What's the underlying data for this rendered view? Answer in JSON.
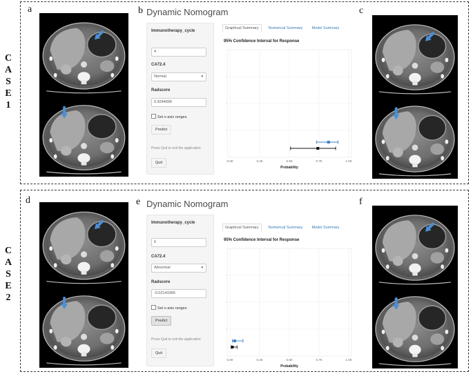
{
  "panel_letters": {
    "a": "a",
    "b": "b",
    "c": "c",
    "d": "d",
    "e": "e",
    "f": "f"
  },
  "case_labels": [
    {
      "letters": [
        "C",
        "A",
        "S",
        "E",
        "1"
      ]
    },
    {
      "letters": [
        "C",
        "A",
        "S",
        "E",
        "2"
      ]
    }
  ],
  "apps": [
    {
      "title": "Dynamic Nomogram",
      "sidebar": {
        "immunotherapy_label": "Immunotherapy_cycle",
        "immunotherapy_value": "4",
        "ca_label": "CA72.4",
        "ca_value": "Normal",
        "radscore_label": "Radscore",
        "radscore_value": "0.9244596",
        "checkbox_label": "Set x-axis ranges",
        "predict_label": "Predict",
        "hint": "Press Quit to exit the application",
        "quit_label": "Quit"
      },
      "tabs": [
        "Graphical Summary",
        "Numerical Summary",
        "Model Summary"
      ],
      "active_tab": 0,
      "chart_title": "95% Confidence Interval for Response",
      "chart_data": {
        "type": "scatter",
        "title": "95% Confidence Interval for Response",
        "xlabel": "Probability",
        "ylabel": "",
        "xlim": [
          0,
          1
        ],
        "x_ticks": [
          "0.00",
          "0.25",
          "0.50",
          "0.75",
          "1.00"
        ],
        "grid": true,
        "series": [
          {
            "point": 0.83,
            "lower": 0.73,
            "upper": 0.91,
            "color": "#3b7fc4"
          },
          {
            "point": 0.74,
            "lower": 0.51,
            "upper": 0.89,
            "color": "#111111"
          }
        ]
      }
    },
    {
      "title": "Dynamic Nomogram",
      "sidebar": {
        "immunotherapy_label": "Immunotherapy_cycle",
        "immunotherapy_value": "6",
        "ca_label": "CA72.4",
        "ca_value": "Abnormal",
        "radscore_label": "Radscore",
        "radscore_value": "-0.02143366",
        "checkbox_label": "Set x-axis ranges",
        "predict_label": "Predict",
        "hint": "Press Quit to exit the application",
        "quit_label": "Quit"
      },
      "tabs": [
        "Graphical Summary",
        "Numerical Summary",
        "Model Summary"
      ],
      "active_tab": 0,
      "chart_title": "95% Confidence Interval for Response",
      "chart_data": {
        "type": "scatter",
        "title": "95% Confidence Interval for Response",
        "xlabel": "Probability",
        "ylabel": "",
        "xlim": [
          0,
          1
        ],
        "x_ticks": [
          "0.00",
          "0.25",
          "0.50",
          "0.75",
          "1.00"
        ],
        "grid": true,
        "series": [
          {
            "point": 0.04,
            "lower": 0.02,
            "upper": 0.11,
            "color": "#3b7fc4"
          },
          {
            "point": 0.02,
            "lower": 0.01,
            "upper": 0.06,
            "color": "#111111"
          }
        ]
      }
    }
  ],
  "ct_images": [
    {
      "panel": "a",
      "slot": "top",
      "arrow": "down-left"
    },
    {
      "panel": "a",
      "slot": "bottom",
      "arrow": "down"
    },
    {
      "panel": "c",
      "slot": "top",
      "arrow": "down-left"
    },
    {
      "panel": "c",
      "slot": "bottom",
      "arrow": "down"
    },
    {
      "panel": "d",
      "slot": "top",
      "arrow": "down-left"
    },
    {
      "panel": "d",
      "slot": "bottom",
      "arrow": "down"
    },
    {
      "panel": "f",
      "slot": "top",
      "arrow": "down-left"
    },
    {
      "panel": "f",
      "slot": "bottom",
      "arrow": "down"
    }
  ],
  "colors": {
    "arrow": "#4a8fd6",
    "ci_blue": "#3b7fc4",
    "ci_black": "#111111",
    "dashed_border": "#333333"
  }
}
